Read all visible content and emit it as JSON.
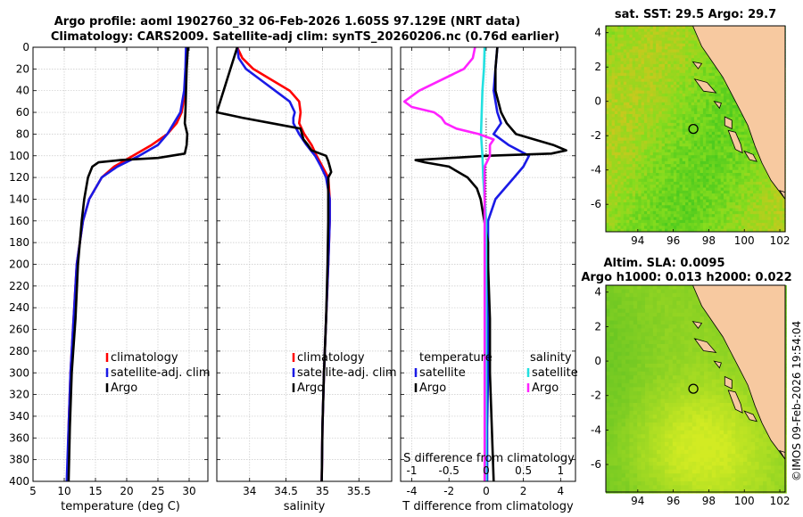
{
  "title_line1": "Argo profile: aoml 1902760_32 06-Feb-2026 1.605S 97.129E (NRT data)",
  "title_line2": "Climatology: CARS2009. Satellite-adj clim: synTS_20260206.nc (0.76d earlier)",
  "colors": {
    "red": "#ff0000",
    "blue": "#1a1ae6",
    "black": "#000000",
    "magenta": "#ff22ff",
    "cyan": "#22e0e0",
    "land": "#f7c9a0"
  },
  "chart_data": [
    {
      "type": "line",
      "name": "temperature",
      "xlabel": "temperature (deg C)",
      "xlim": [
        5,
        33
      ],
      "xticks": [
        5,
        10,
        15,
        20,
        25,
        30
      ],
      "ylim": [
        0,
        400
      ],
      "yticks": [
        0,
        20,
        40,
        60,
        80,
        100,
        120,
        140,
        160,
        180,
        200,
        220,
        240,
        260,
        280,
        300,
        320,
        340,
        360,
        380,
        400
      ],
      "legend": [
        "climatology",
        "satellite-adj. clim",
        "Argo"
      ],
      "series": [
        {
          "name": "climatology",
          "color": "red",
          "depth": [
            0,
            20,
            40,
            60,
            70,
            80,
            90,
            100,
            110,
            120,
            140,
            160,
            180,
            200,
            250,
            300,
            350,
            400
          ],
          "values": [
            29.6,
            29.5,
            29.4,
            28.8,
            28.0,
            26.5,
            24.0,
            21.0,
            18.0,
            16.0,
            14.0,
            13.0,
            12.5,
            12.0,
            11.5,
            11.0,
            10.7,
            10.5
          ]
        },
        {
          "name": "satellite-adj. clim",
          "color": "blue",
          "depth": [
            0,
            20,
            40,
            60,
            80,
            90,
            100,
            110,
            120,
            140,
            160,
            180,
            200,
            250,
            300,
            350,
            400
          ],
          "values": [
            29.5,
            29.4,
            29.2,
            28.6,
            26.5,
            25.0,
            22.0,
            18.5,
            16.0,
            14.0,
            13.0,
            12.5,
            12.0,
            11.5,
            11.0,
            10.7,
            10.4
          ]
        },
        {
          "name": "Argo",
          "color": "black",
          "depth": [
            0,
            20,
            40,
            60,
            70,
            80,
            90,
            98,
            102,
            104,
            106,
            110,
            120,
            140,
            160,
            180,
            200,
            250,
            300,
            350,
            400
          ],
          "values": [
            29.8,
            29.6,
            29.5,
            29.4,
            29.3,
            29.7,
            29.6,
            29.3,
            25.0,
            19.0,
            15.5,
            14.5,
            13.8,
            13.2,
            12.8,
            12.5,
            12.2,
            11.8,
            11.2,
            10.9,
            10.7
          ]
        }
      ]
    },
    {
      "type": "line",
      "name": "salinity",
      "xlabel": "salinity",
      "xlim": [
        33.55,
        35.95
      ],
      "xticks": [
        34,
        34.5,
        35,
        35.5
      ],
      "ylim": [
        0,
        400
      ],
      "legend": [
        "climatology",
        "satellite-adj. clim",
        "Argo"
      ],
      "series": [
        {
          "name": "climatology",
          "color": "red",
          "depth": [
            0,
            10,
            20,
            30,
            40,
            50,
            60,
            70,
            80,
            90,
            100,
            110,
            120,
            140,
            160,
            200,
            250,
            300,
            350,
            400
          ],
          "values": [
            33.83,
            33.9,
            34.05,
            34.3,
            34.55,
            34.68,
            34.7,
            34.68,
            34.75,
            34.85,
            34.92,
            35.0,
            35.08,
            35.1,
            35.1,
            35.08,
            35.05,
            35.02,
            35.0,
            34.99
          ]
        },
        {
          "name": "satellite-adj. clim",
          "color": "blue",
          "depth": [
            0,
            10,
            20,
            30,
            40,
            50,
            60,
            65,
            70,
            80,
            90,
            100,
            110,
            120,
            140,
            160,
            200,
            250,
            300,
            350,
            400
          ],
          "values": [
            33.83,
            33.85,
            33.95,
            34.15,
            34.35,
            34.55,
            34.62,
            34.6,
            34.6,
            34.68,
            34.78,
            34.9,
            34.98,
            35.05,
            35.1,
            35.1,
            35.08,
            35.05,
            35.02,
            35.0,
            34.99
          ]
        },
        {
          "name": "Argo",
          "color": "black",
          "depth": [
            0,
            60,
            65,
            70,
            75,
            80,
            85,
            90,
            95,
            100,
            105,
            110,
            115,
            120,
            140,
            160,
            200,
            250,
            300,
            350,
            400
          ],
          "values": [
            33.83,
            33.55,
            33.9,
            34.3,
            34.7,
            34.72,
            34.74,
            34.8,
            34.85,
            35.05,
            35.08,
            35.1,
            35.12,
            35.08,
            35.08,
            35.08,
            35.07,
            35.05,
            35.02,
            35.0,
            34.99
          ]
        }
      ]
    },
    {
      "type": "line",
      "name": "difference",
      "xlabel": "T difference from climatology",
      "xlabel_top": "S difference from climatology",
      "xlim": [
        -4.6,
        4.8
      ],
      "xticks": [
        -4,
        -2,
        0,
        2,
        4
      ],
      "xlim_top": [
        -1.15,
        1.2
      ],
      "xticks_top": [
        -1,
        -0.5,
        0,
        0.5,
        1
      ],
      "ylim": [
        0,
        400
      ],
      "legend_temperature": {
        "title": "temperature",
        "items": [
          "satellite",
          "Argo"
        ]
      },
      "legend_salinity": {
        "title": "salinity",
        "items": [
          "satellite",
          "Argo"
        ]
      },
      "series": [
        {
          "name": "T satellite",
          "color": "blue",
          "depth": [
            0,
            20,
            40,
            60,
            70,
            80,
            90,
            100,
            110,
            120,
            140,
            160,
            200,
            250,
            300,
            350,
            400
          ],
          "values": [
            0.6,
            0.5,
            0.4,
            0.6,
            0.8,
            0.4,
            1.2,
            2.3,
            2.0,
            1.5,
            0.5,
            0.1,
            0.1,
            0.1,
            0.1,
            0.05,
            0.05
          ]
        },
        {
          "name": "T Argo",
          "color": "black",
          "depth": [
            0,
            20,
            40,
            60,
            70,
            80,
            85,
            90,
            95,
            98,
            100,
            104,
            106,
            110,
            120,
            130,
            140,
            160,
            180,
            200,
            250,
            300,
            350,
            400
          ],
          "values": [
            0.6,
            0.5,
            0.5,
            0.8,
            1.1,
            1.6,
            2.6,
            3.6,
            4.3,
            3.5,
            0,
            -3.8,
            -3.3,
            -2.0,
            -1.0,
            -0.5,
            -0.3,
            -0.1,
            0.1,
            0.1,
            0.2,
            0.2,
            0.3,
            0.4
          ]
        },
        {
          "name": "S satellite",
          "color": "cyan",
          "depth": [
            0,
            20,
            40,
            60,
            80,
            100,
            120,
            140,
            160,
            200,
            300,
            400
          ],
          "values": [
            -0.02,
            -0.03,
            -0.05,
            -0.06,
            -0.07,
            -0.05,
            -0.04,
            -0.02,
            0,
            0,
            0,
            0
          ]
        },
        {
          "name": "S Argo",
          "color": "magenta",
          "depth": [
            0,
            10,
            20,
            40,
            50,
            55,
            60,
            65,
            70,
            75,
            80,
            85,
            90,
            100,
            110,
            120,
            140,
            160,
            200,
            250,
            300,
            400
          ],
          "values": [
            -0.15,
            -0.18,
            -0.3,
            -0.9,
            -1.1,
            -1.0,
            -0.7,
            -0.6,
            -0.55,
            -0.4,
            -0.1,
            0.1,
            0.05,
            0.05,
            -0.02,
            -0.02,
            -0.02,
            -0.02,
            -0.02,
            -0.02,
            -0.02,
            -0.02
          ]
        }
      ]
    },
    {
      "type": "heatmap",
      "name": "sst_map",
      "title": "sat. SST: 29.5 Argo: 29.7",
      "xlim": [
        92.2,
        102.3
      ],
      "ylim": [
        -7.6,
        4.4
      ],
      "xticks": [
        94,
        96,
        98,
        100,
        102
      ],
      "yticks": [
        4,
        2,
        0,
        -2,
        -4,
        -6
      ],
      "float_position": [
        97.13,
        -1.605
      ]
    },
    {
      "type": "heatmap",
      "name": "sla_map",
      "title_line1": "Altim. SLA: 0.0095",
      "title_line2": "Argo h1000: 0.013 h2000: 0.022",
      "xlim": [
        92.2,
        102.3
      ],
      "ylim": [
        -7.6,
        4.4
      ],
      "xticks": [
        94,
        96,
        98,
        100,
        102
      ],
      "yticks": [
        4,
        2,
        0,
        -2,
        -4,
        -6
      ],
      "float_position": [
        97.13,
        -1.605
      ]
    }
  ],
  "credit": "©IMOS 09-Feb-2026 19:54:04"
}
